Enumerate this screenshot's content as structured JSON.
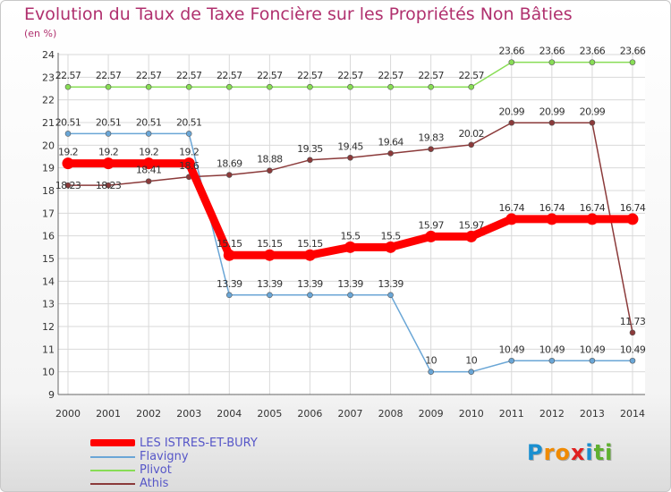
{
  "chart_data": {
    "type": "line",
    "title": "Evolution du Taux de Taxe Foncière sur les Propriétés Non Bâties",
    "ylabel": "(en %)",
    "xlabel": "",
    "ylim": [
      9,
      24
    ],
    "yticks": [
      9,
      10,
      11,
      12,
      13,
      14,
      15,
      16,
      17,
      18,
      19,
      20,
      21,
      22,
      23,
      24
    ],
    "categories": [
      "2000",
      "2001",
      "2002",
      "2003",
      "2004",
      "2005",
      "2006",
      "2007",
      "2008",
      "2009",
      "2010",
      "2011",
      "2012",
      "2013",
      "2014"
    ],
    "grid": true,
    "legend_position": "bottom-left",
    "series": [
      {
        "name": "LES ISTRES-ET-BURY",
        "color": "#ff0000",
        "values": [
          19.2,
          19.2,
          19.2,
          19.2,
          15.15,
          15.15,
          15.15,
          15.5,
          15.5,
          15.97,
          15.97,
          16.74,
          16.74,
          16.74,
          16.74
        ],
        "labels": [
          "19.2",
          "19.2",
          "19.2",
          "19.2",
          "15.15",
          "15.15",
          "15.15",
          "15.5",
          "15.5",
          "15.97",
          "15.97",
          "16.74",
          "16.74",
          "16.74",
          "16.74"
        ]
      },
      {
        "name": "Flavigny",
        "color": "#6aa6d6",
        "values": [
          20.51,
          20.51,
          20.51,
          20.51,
          13.39,
          13.39,
          13.39,
          13.39,
          13.39,
          10,
          10,
          10.49,
          10.49,
          10.49,
          10.49
        ],
        "labels": [
          "20.51",
          "20.51",
          "20.51",
          "20.51",
          "13.39",
          "13.39",
          "13.39",
          "13.39",
          "13.39",
          "10",
          "10",
          "10.49",
          "10.49",
          "10.49",
          "10.49"
        ]
      },
      {
        "name": "Plivot",
        "color": "#88dd55",
        "values": [
          22.57,
          22.57,
          22.57,
          22.57,
          22.57,
          22.57,
          22.57,
          22.57,
          22.57,
          22.57,
          22.57,
          23.66,
          23.66,
          23.66,
          23.66
        ],
        "labels": [
          "22.57",
          "22.57",
          "22.57",
          "22.57",
          "22.57",
          "22.57",
          "22.57",
          "22.57",
          "22.57",
          "22.57",
          "22.57",
          "23.66",
          "23.66",
          "23.66",
          "23.66"
        ]
      },
      {
        "name": "Athis",
        "color": "#8b3a3a",
        "values": [
          18.23,
          18.23,
          18.41,
          18.6,
          18.69,
          18.88,
          19.35,
          19.45,
          19.64,
          19.83,
          20.02,
          20.99,
          20.99,
          20.99,
          11.73
        ],
        "labels": [
          "18.23",
          "18.23",
          "18.41",
          "18.6",
          "18.69",
          "18.88",
          "19.35",
          "19.45",
          "19.64",
          "19.83",
          "20.02",
          "20.99",
          "20.99",
          "20.99",
          "11.73"
        ]
      }
    ]
  },
  "branding": {
    "logo_letters": [
      "P",
      "r",
      "o",
      "x",
      "i",
      "t",
      "i"
    ],
    "logo_colors": [
      "#1a8fd0",
      "#f08a00",
      "#f08a00",
      "#e02020",
      "#1a8fd0",
      "#60b030",
      "#60b030"
    ]
  }
}
